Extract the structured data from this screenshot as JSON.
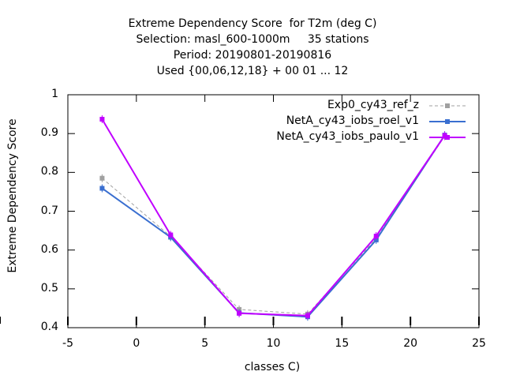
{
  "chart_data": {
    "type": "line",
    "title_lines": [
      "Extreme Dependency Score  for T2m (deg C)",
      "Selection: masl_600-1000m     35 stations",
      "Period: 20190801-20190816",
      "Used {00,06,12,18} + 00 01 ... 12"
    ],
    "xlabel": "classes C)",
    "ylabel": "Extreme Dependency Score",
    "xlim": [
      -5,
      25
    ],
    "ylim": [
      0.4,
      1.0
    ],
    "xticks": [
      "-5",
      "0",
      "5",
      "10",
      "15",
      "20",
      "25"
    ],
    "yticks": [
      "0.4",
      "0.5",
      "0.6",
      "0.7",
      "0.8",
      "0.9",
      "1"
    ],
    "x": [
      -2.5,
      2.5,
      7.5,
      12.5,
      17.5,
      22.5
    ],
    "series": [
      {
        "name": "Exp0_cy43_ref_z",
        "color": "#a0a0a0",
        "dashed": true,
        "values": [
          0.785,
          0.635,
          0.447,
          0.435,
          0.63,
          0.893
        ]
      },
      {
        "name": "NetA_cy43_iobs_roel_v1",
        "color": "#3a6fd0",
        "dashed": false,
        "values": [
          0.759,
          0.633,
          0.438,
          0.428,
          0.626,
          0.896
        ]
      },
      {
        "name": "NetA_cy43_iobs_paulo_v1",
        "color": "#c000ff",
        "dashed": false,
        "values": [
          0.937,
          0.639,
          0.437,
          0.431,
          0.636,
          0.895
        ]
      }
    ],
    "legend_position": "top-right",
    "grid": false
  }
}
